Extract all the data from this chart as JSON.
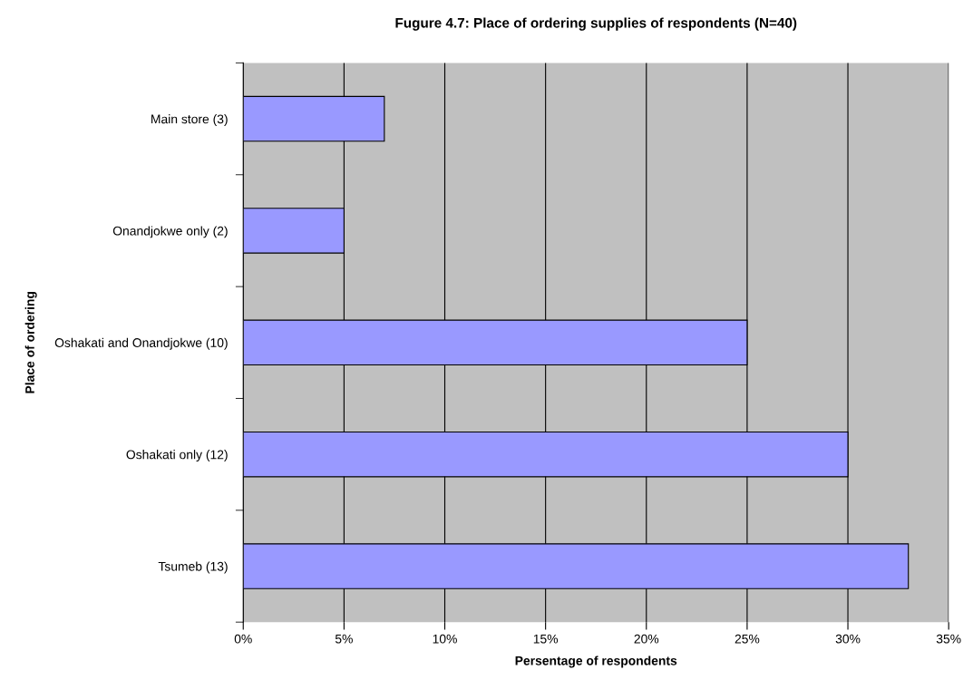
{
  "chart_data": {
    "type": "bar",
    "orientation": "horizontal",
    "title": "Fugure 4.7: Place of ordering supplies of respondents (N=40)",
    "xlabel": "Persentage of respondents",
    "ylabel": "Place of ordering",
    "categories": [
      "Main store (3)",
      "Onandjokwe only (2)",
      "Oshakati and Onandjokwe (10)",
      "Oshakati only (12)",
      "Tsumeb (13)"
    ],
    "values": [
      7,
      5,
      25,
      30,
      33
    ],
    "color": "#9999ff",
    "xlim": [
      0,
      35
    ],
    "xticks": [
      {
        "value": 0,
        "label": "0%"
      },
      {
        "value": 5,
        "label": "5%"
      },
      {
        "value": 10,
        "label": "10%"
      },
      {
        "value": 15,
        "label": "15%"
      },
      {
        "value": 20,
        "label": "20%"
      },
      {
        "value": 25,
        "label": "25%"
      },
      {
        "value": 30,
        "label": "30%"
      },
      {
        "value": 35,
        "label": "35%"
      }
    ],
    "grid": "x",
    "legend": false
  }
}
